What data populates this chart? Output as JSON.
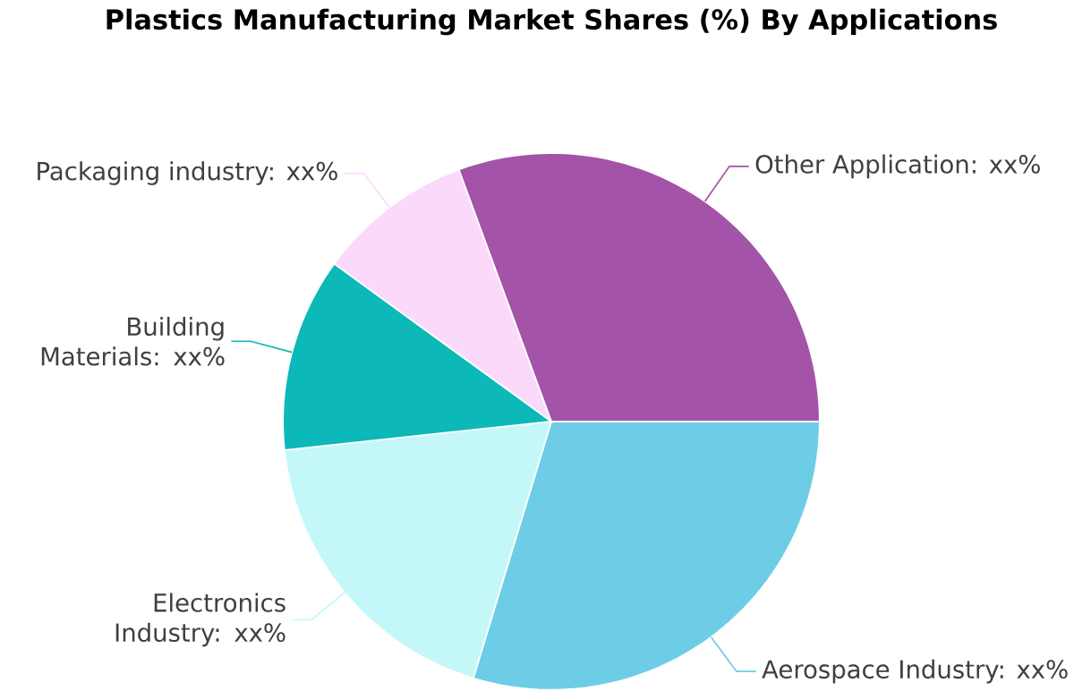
{
  "chart_data": {
    "type": "pie",
    "title": "Plastics Manufacturing Market Shares (%) By Applications",
    "categories": [
      "Aerospace Industry: xx%",
      "Electronics Industry: xx%",
      "Building Materials: xx%",
      "Packaging industry: xx%",
      "Other Application: xx%"
    ],
    "values": [
      29.7,
      18.6,
      11.7,
      9.4,
      30.6
    ],
    "colors": [
      "#6dcde6",
      "#c4f8f8",
      "#0cb8b8",
      "#fbd9fb",
      "#a353a8"
    ]
  }
}
